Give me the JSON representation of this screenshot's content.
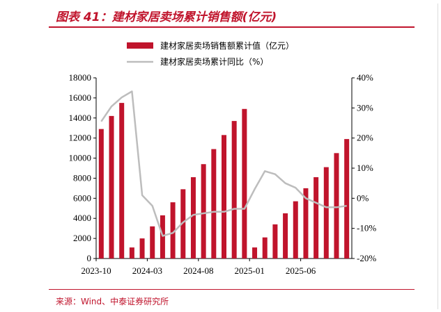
{
  "header": {
    "title": "图表 41：建材家居卖场累计销售额(亿元)"
  },
  "footer": {
    "source": "来源：Wind、中泰证券研究所"
  },
  "colors": {
    "accent": "#c0142c",
    "bar": "#c0142c",
    "line": "#bdbdbd"
  },
  "chart_data": {
    "type": "bar",
    "legend": {
      "placement": "top",
      "bar_label": "建材家居卖场销售额累计值（亿元）",
      "line_label": "建材家居卖场累计同比（%）"
    },
    "x_ticks": [
      "2023-10",
      "2024-03",
      "2024-08",
      "2025-01",
      "2025-06"
    ],
    "x_tick_indices": [
      0,
      5,
      10,
      15,
      20
    ],
    "left_axis": {
      "min": 0,
      "max": 18000,
      "ticks": [
        "0",
        "2000",
        "4000",
        "6000",
        "8000",
        "10000",
        "12000",
        "14000",
        "16000",
        "18000"
      ]
    },
    "right_axis": {
      "min": -20,
      "max": 40,
      "ticks": [
        "-20%",
        "-10%",
        "0%",
        "10%",
        "20%",
        "30%",
        "40%"
      ]
    },
    "series": [
      {
        "name": "建材家居卖场销售额累计值（亿元）",
        "kind": "bar",
        "values": [
          12900,
          14200,
          15500,
          1100,
          2000,
          3200,
          4300,
          5600,
          6900,
          8100,
          9400,
          10900,
          12300,
          13700,
          14900,
          1100,
          2100,
          3400,
          4500,
          5700,
          7000,
          8100,
          9100,
          10500,
          11900
        ]
      },
      {
        "name": "建材家居卖场累计同比（%）",
        "kind": "line",
        "values": [
          25.5,
          30.5,
          33.5,
          35.5,
          1,
          -2.5,
          -12.5,
          -11.5,
          -8,
          -5.5,
          -5,
          -4.5,
          -4.5,
          -3.5,
          -3.5,
          3,
          9,
          8,
          5,
          3.5,
          0,
          -1.5,
          -3,
          -3,
          -2.5
        ]
      }
    ]
  }
}
